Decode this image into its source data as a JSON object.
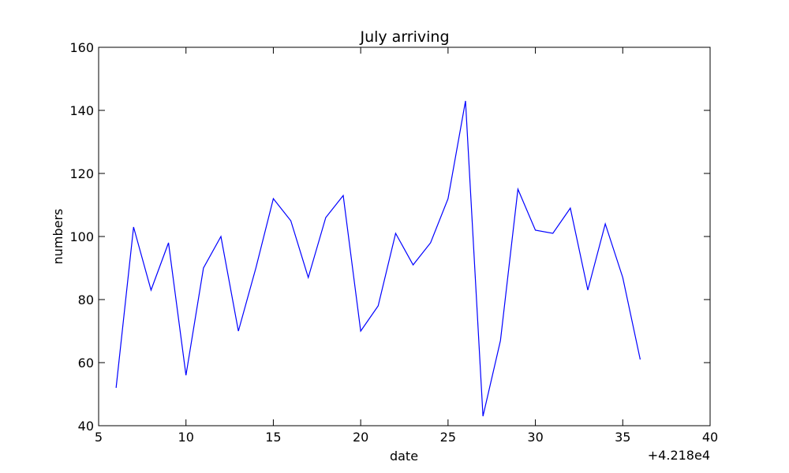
{
  "chart_data": {
    "type": "line",
    "title": "July arriving",
    "xlabel": "date",
    "ylabel": "numbers",
    "x_offset_label": "+4.218e4",
    "xlim": [
      5,
      40
    ],
    "ylim": [
      40,
      160
    ],
    "x_ticks": [
      5,
      10,
      15,
      20,
      25,
      30,
      35,
      40
    ],
    "y_ticks": [
      40,
      60,
      80,
      100,
      120,
      140,
      160
    ],
    "grid": false,
    "series": [
      {
        "color": "#0000ff",
        "x": [
          6,
          7,
          8,
          9,
          10,
          11,
          12,
          13,
          14,
          15,
          16,
          17,
          18,
          19,
          20,
          21,
          22,
          23,
          24,
          25,
          26,
          27,
          28,
          29,
          30,
          31,
          32,
          33,
          34,
          35,
          36
        ],
        "values": [
          52,
          103,
          83,
          98,
          56,
          90,
          100,
          70,
          90,
          112,
          105,
          87,
          106,
          113,
          70,
          78,
          101,
          91,
          98,
          112,
          143,
          43,
          67,
          115,
          102,
          101,
          109,
          83,
          104,
          87,
          61
        ]
      }
    ]
  }
}
